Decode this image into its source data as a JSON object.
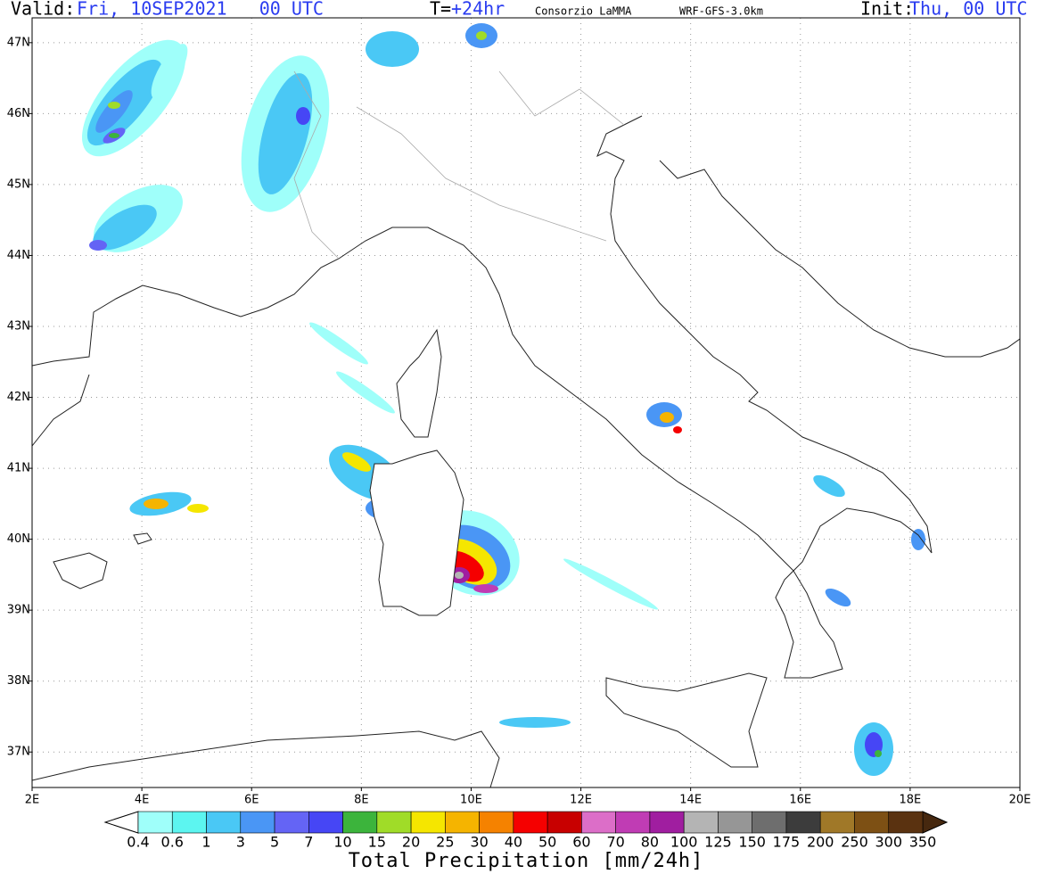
{
  "header": {
    "valid_label": "Valid:",
    "valid_time": "Fri, 10SEP2021   00 UTC",
    "lead_label": "T=",
    "lead_time": "+24hr",
    "source": "Consorzio LaMMA",
    "model": "WRF-GFS-3.0km",
    "init_label": "Init:",
    "init_time": "Thu, 00 UTC"
  },
  "map": {
    "lon_range": [
      2,
      20
    ],
    "lat_range": [
      36.5,
      47.35
    ],
    "grid": true,
    "lon_ticks": [
      {
        "value": 2,
        "label": "2E"
      },
      {
        "value": 4,
        "label": "4E"
      },
      {
        "value": 6,
        "label": "6E"
      },
      {
        "value": 8,
        "label": "8E"
      },
      {
        "value": 10,
        "label": "10E"
      },
      {
        "value": 12,
        "label": "12E"
      },
      {
        "value": 14,
        "label": "14E"
      },
      {
        "value": 16,
        "label": "16E"
      },
      {
        "value": 18,
        "label": "18E"
      },
      {
        "value": 20,
        "label": "20E"
      }
    ],
    "lat_ticks": [
      {
        "value": 37,
        "label": "37N"
      },
      {
        "value": 38,
        "label": "38N"
      },
      {
        "value": 39,
        "label": "39N"
      },
      {
        "value": 40,
        "label": "40N"
      },
      {
        "value": 41,
        "label": "41N"
      },
      {
        "value": 42,
        "label": "42N"
      },
      {
        "value": 43,
        "label": "43N"
      },
      {
        "value": 44,
        "label": "44N"
      },
      {
        "value": 45,
        "label": "45N"
      },
      {
        "value": 46,
        "label": "46N"
      },
      {
        "value": 47,
        "label": "47N"
      }
    ]
  },
  "colorbar": {
    "title": "Total Precipitation [mm/24h]",
    "levels": [
      0.4,
      0.6,
      1,
      3,
      5,
      7,
      10,
      15,
      20,
      25,
      30,
      40,
      50,
      60,
      70,
      80,
      100,
      125,
      150,
      175,
      200,
      250,
      300,
      350
    ],
    "colors": [
      "#9ffffa",
      "#5cf5f0",
      "#4ac8f5",
      "#4a96f5",
      "#6464f5",
      "#4646f5",
      "#3cb43c",
      "#a0dc28",
      "#f5e600",
      "#f5b400",
      "#f58200",
      "#f50000",
      "#c80000",
      "#dc6ec8",
      "#c03cb4",
      "#a01ea0",
      "#b4b4b4",
      "#969696",
      "#6e6e6e",
      "#3c3c3c",
      "#a07828",
      "#7d5014",
      "#5a3210"
    ],
    "under_color": "#ffffff",
    "over_color": "#46280f"
  }
}
